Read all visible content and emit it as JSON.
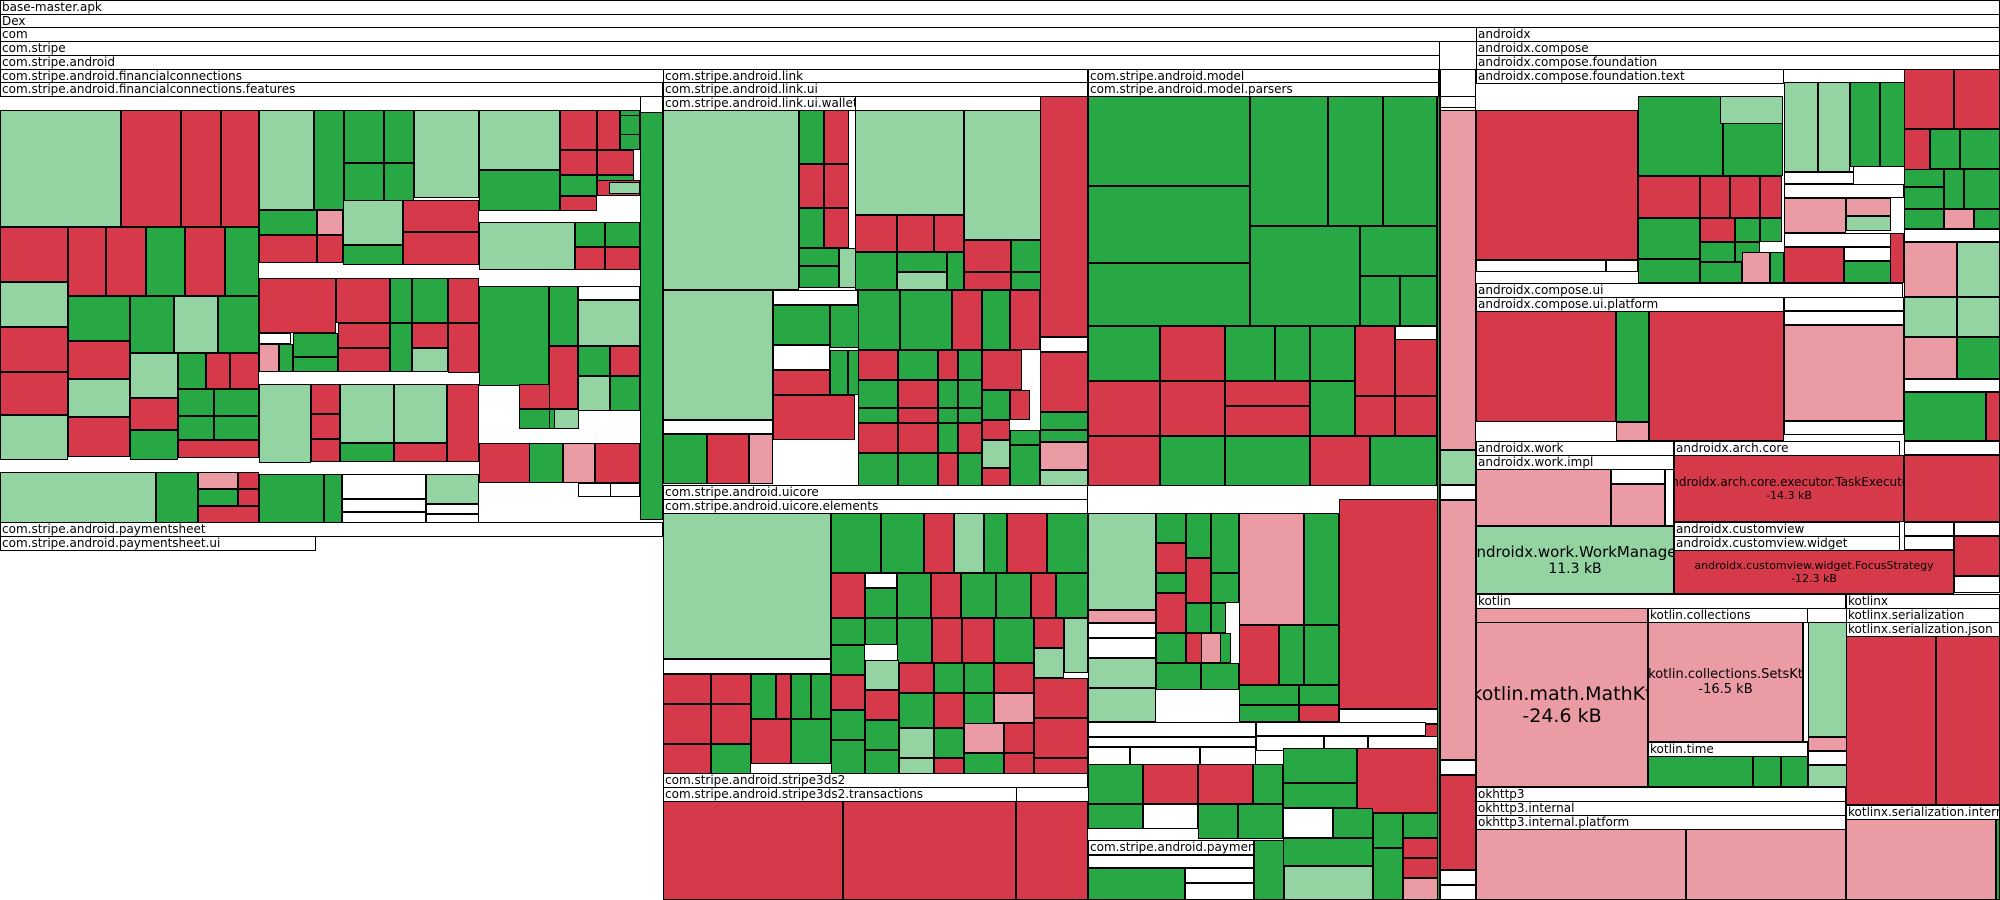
{
  "colors": {
    "G": "#28a745",
    "g": "#94d3a2",
    "R": "#d63a4a",
    "r": "#eb9ba4",
    "W": "#ffffff"
  },
  "chart_data": {
    "type": "treemap",
    "title": "base-master.apk",
    "packages": [
      {
        "name": "base-master.apk"
      },
      {
        "name": "Dex"
      },
      {
        "name": "com"
      },
      {
        "name": "com.stripe"
      },
      {
        "name": "com.stripe.android"
      },
      {
        "name": "com.stripe.android.financialconnections"
      },
      {
        "name": "com.stripe.android.financialconnections.features"
      },
      {
        "name": "com.stripe.android.link"
      },
      {
        "name": "com.stripe.android.link.ui"
      },
      {
        "name": "com.stripe.android.link.ui.wallet"
      },
      {
        "name": "com.stripe.android.model"
      },
      {
        "name": "com.stripe.android.model.parsers"
      },
      {
        "name": "com.stripe.android.uicore"
      },
      {
        "name": "com.stripe.android.uicore.elements"
      },
      {
        "name": "com.stripe.android.paymentsheet"
      },
      {
        "name": "com.stripe.android.paymentsheet.ui"
      },
      {
        "name": "com.stripe.android.stripe3ds2"
      },
      {
        "name": "com.stripe.android.stripe3ds2.transactions"
      },
      {
        "name": "com.stripe.android.payments"
      },
      {
        "name": "androidx"
      },
      {
        "name": "androidx.compose"
      },
      {
        "name": "androidx.compose.foundation"
      },
      {
        "name": "androidx.compose.foundation.text"
      },
      {
        "name": "androidx.compose.ui"
      },
      {
        "name": "androidx.compose.ui.platform"
      },
      {
        "name": "androidx.work"
      },
      {
        "name": "androidx.work.impl"
      },
      {
        "name": "androidx.arch.core"
      },
      {
        "name": "androidx.customview"
      },
      {
        "name": "androidx.customview.widget"
      },
      {
        "name": "kotlin"
      },
      {
        "name": "kotlin.collections"
      },
      {
        "name": "kotlin.time"
      },
      {
        "name": "kotlinx"
      },
      {
        "name": "kotlinx.serialization"
      },
      {
        "name": "kotlinx.serialization.json"
      },
      {
        "name": "kotlinx.serialization.internal"
      },
      {
        "name": "okhttp3"
      },
      {
        "name": "okhttp3.internal"
      },
      {
        "name": "okhttp3.internal.platform"
      }
    ],
    "highlighted": [
      {
        "name": "androidx.arch.core.executor.TaskExecutor",
        "size": "-14.3 kB",
        "change": "decrease"
      },
      {
        "name": "androidx.work.WorkManager",
        "size": "11.3 kB",
        "change": "increase"
      },
      {
        "name": "androidx.customview.widget.FocusStrategy",
        "size": "-12.3 kB",
        "change": "decrease"
      },
      {
        "name": "kotlin.math.MathKt",
        "size": "-24.6 kB",
        "change": "decrease"
      },
      {
        "name": "kotlin.collections.SetsKt",
        "size": "-16.5 kB",
        "change": "decrease"
      }
    ]
  }
}
